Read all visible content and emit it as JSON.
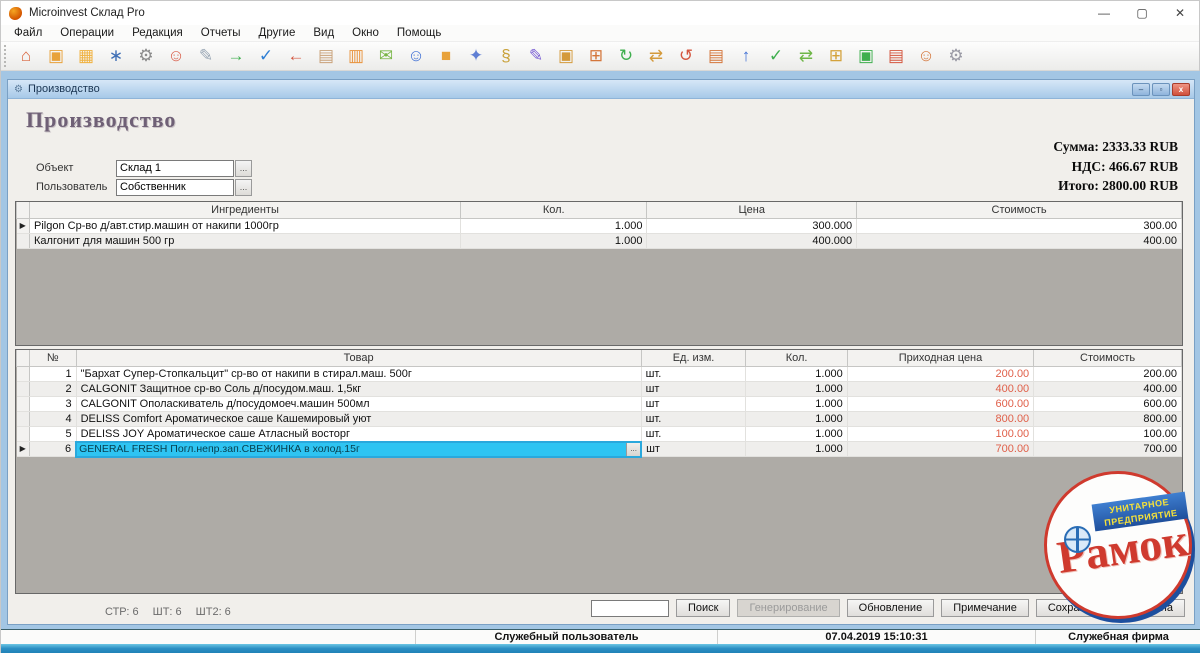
{
  "window": {
    "title": "Microinvest Склад Pro",
    "minimize": "—",
    "maximize": "▢",
    "close": "✕"
  },
  "menu": {
    "items": [
      "Файл",
      "Операции",
      "Редакция",
      "Отчеты",
      "Другие",
      "Вид",
      "Окно",
      "Помощь"
    ]
  },
  "toolbar": {
    "icons": [
      {
        "name": "exit-door",
        "glyph": "⌂",
        "color": "#d9633b"
      },
      {
        "name": "box-open-in",
        "glyph": "▣",
        "color": "#e8a23b"
      },
      {
        "name": "box-open-out",
        "glyph": "▦",
        "color": "#f0b13e"
      },
      {
        "name": "tools-jack",
        "glyph": "∗",
        "color": "#3f6fb5"
      },
      {
        "name": "stones",
        "glyph": "⚙",
        "color": "#8a8a8a"
      },
      {
        "name": "partner-chat",
        "glyph": "☺",
        "color": "#d95f4b"
      },
      {
        "name": "document-note",
        "glyph": "✎",
        "color": "#9aa7b5"
      },
      {
        "name": "transfer-right-arrow",
        "glyph": "→",
        "color": "#3faf4e"
      },
      {
        "name": "transfer-check-arrow",
        "glyph": "✓",
        "color": "#2f7fd4"
      },
      {
        "name": "transfer-left-arrow",
        "glyph": "←",
        "color": "#d4563f"
      },
      {
        "name": "clipboard",
        "glyph": "▤",
        "color": "#c9a27a"
      },
      {
        "name": "address-book",
        "glyph": "▥",
        "color": "#e8923b"
      },
      {
        "name": "mail-envelope",
        "glyph": "✉",
        "color": "#7ab648"
      },
      {
        "name": "user-blue",
        "glyph": "☺",
        "color": "#3f6fd4"
      },
      {
        "name": "package-box",
        "glyph": "■",
        "color": "#e8a23b"
      },
      {
        "name": "keys",
        "glyph": "✦",
        "color": "#5f7fd4"
      },
      {
        "name": "doc-key",
        "glyph": "§",
        "color": "#c9a23b"
      },
      {
        "name": "scroll-pen",
        "glyph": "✎",
        "color": "#7a5fd4"
      },
      {
        "name": "doc-box",
        "glyph": "▣",
        "color": "#d49a3b"
      },
      {
        "name": "doc-calendar",
        "glyph": "⊞",
        "color": "#d4763b"
      },
      {
        "name": "doc-box-refresh",
        "glyph": "↻",
        "color": "#3faf4e"
      },
      {
        "name": "doc-box-exchange",
        "glyph": "⇄",
        "color": "#d49a3b"
      },
      {
        "name": "doc-refresh-red",
        "glyph": "↺",
        "color": "#d4563f"
      },
      {
        "name": "doc-paste",
        "glyph": "▤",
        "color": "#d4763b"
      },
      {
        "name": "doc-box-up",
        "glyph": "↑",
        "color": "#3f6fd4"
      },
      {
        "name": "doc-approve-check",
        "glyph": "✓",
        "color": "#3faf4e"
      },
      {
        "name": "doc-send-exchange",
        "glyph": "⇄",
        "color": "#6fb648"
      },
      {
        "name": "doc-boxes-plus",
        "glyph": "⊞",
        "color": "#d4a23b"
      },
      {
        "name": "doc-box-green",
        "glyph": "▣",
        "color": "#3faf4e"
      },
      {
        "name": "report-user-red",
        "glyph": "▤",
        "color": "#d4563f"
      },
      {
        "name": "users-doc",
        "glyph": "☺",
        "color": "#d4763b"
      },
      {
        "name": "settings-gear",
        "glyph": "⚙",
        "color": "#9a9aa5"
      }
    ]
  },
  "mdi": {
    "title": "Производство",
    "minimize": "–",
    "maximize": "▫",
    "close": "x"
  },
  "form": {
    "heading": "Производство",
    "fields": [
      {
        "label": "Объект",
        "value": "Склад 1"
      },
      {
        "label": "Пользователь",
        "value": "Собственник"
      }
    ],
    "browse_label": "...",
    "totals": [
      {
        "line": "Сумма: 2333.33 RUB"
      },
      {
        "line": "НДС: 466.67 RUB"
      },
      {
        "line": "Итого: 2800.00 RUB"
      }
    ]
  },
  "ingredients_table": {
    "headers": [
      "Ингредиенты",
      "Кол.",
      "Цена",
      "Стоимость"
    ],
    "selector_arrow": "▶",
    "rows": [
      {
        "name": "Pilgon Ср-во д/авт.стир.машин от накипи 1000гр",
        "qty": "1.000",
        "price": "300.000",
        "total": "300.00"
      },
      {
        "name": "Калгонит для машин 500 гр",
        "qty": "1.000",
        "price": "400.000",
        "total": "400.00"
      }
    ]
  },
  "products_table": {
    "headers": [
      "№",
      "Товар",
      "Ед. изм.",
      "Кол.",
      "Приходная цена",
      "Стоимость"
    ],
    "selector_arrow": "▶",
    "browse_label": "...",
    "rows": [
      {
        "num": "1",
        "name": "\"Бархат Супер-Стопкальцит\" ср-во от накипи в стирал.маш. 500г",
        "unit": "шт.",
        "qty": "1.000",
        "price": "200.00",
        "total": "200.00"
      },
      {
        "num": "2",
        "name": "CALGONIT Защитное ср-во Соль д/посудом.маш. 1,5кг",
        "unit": "шт",
        "qty": "1.000",
        "price": "400.00",
        "total": "400.00"
      },
      {
        "num": "3",
        "name": "CALGONIT Ополаскиватель д/посудомоеч.машин 500мл",
        "unit": "шт",
        "qty": "1.000",
        "price": "600.00",
        "total": "600.00"
      },
      {
        "num": "4",
        "name": "DELISS Comfort Ароматическое саше Кашемировый уют",
        "unit": "шт.",
        "qty": "1.000",
        "price": "800.00",
        "total": "800.00"
      },
      {
        "num": "5",
        "name": "DELISS JOY Ароматическое саше Атласный восторг",
        "unit": "шт.",
        "qty": "1.000",
        "price": "100.00",
        "total": "100.00"
      },
      {
        "num": "6",
        "name": "GENERAL FRESH Погл.непр.зап.СВЕЖИНКА в холод.15г",
        "unit": "шт",
        "qty": "1.000",
        "price": "700.00",
        "total": "700.00"
      }
    ]
  },
  "status_line": {
    "items": [
      "СТР: 6",
      "ШТ: 6",
      "ШТ2: 6"
    ]
  },
  "actions": {
    "search_value": "",
    "buttons": [
      {
        "label": "Поиск"
      },
      {
        "label": "Генерирование",
        "disabled": true
      },
      {
        "label": "Обновление"
      },
      {
        "label": "Примечание"
      },
      {
        "label": "Сохранить"
      },
      {
        "label": "Отмена"
      }
    ]
  },
  "statusbar": {
    "user": "Служебный пользователь",
    "datetime": "07.04.2019 15:10:31",
    "company": "Служебная фирма"
  },
  "logo": {
    "word": "Рамок",
    "banner_line1": "УНИТАРНОЕ",
    "banner_line2": "ПРЕДПРИЯТИЕ"
  },
  "colors": {
    "selection_cyan": "#2ec4f2",
    "selection_border": "#2aa8dc",
    "price_red": "#e0604a",
    "logo_red": "#cf3a2e",
    "logo_blue": "#1d4f9e",
    "mdi_blue": "#a3c6e4",
    "strip_blue": "#2b8fc4"
  }
}
